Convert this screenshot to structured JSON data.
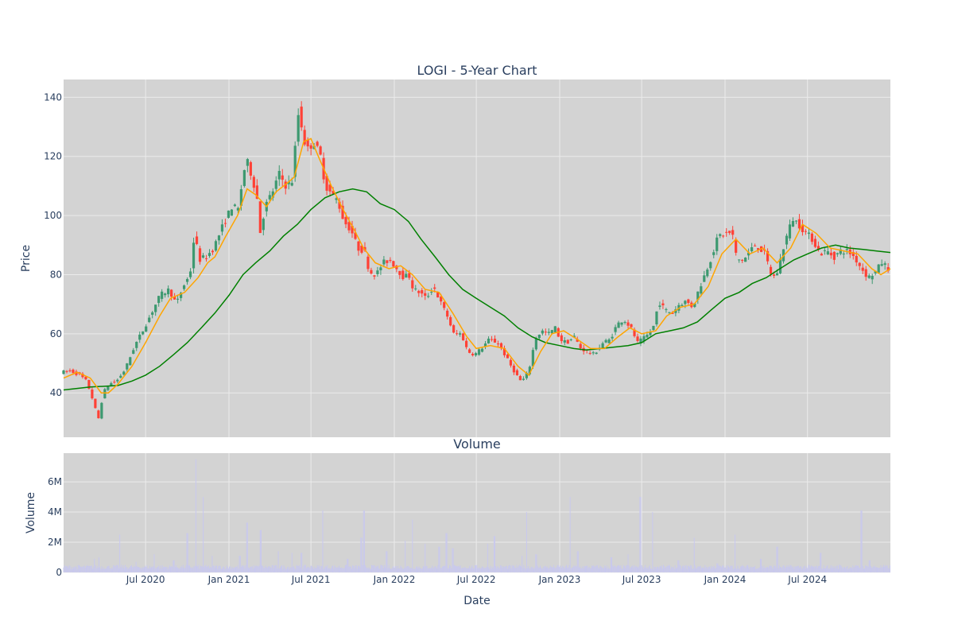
{
  "chart_data": {
    "type": "candlestick",
    "title": "LOGI - 5-Year Chart",
    "subplot_titles": [
      "Volume"
    ],
    "x_axis": {
      "title": "Date",
      "range": [
        "2020-01-02",
        "2024-12-31"
      ],
      "ticks": [
        {
          "date": "2020-07-01",
          "label": "Jul 2020"
        },
        {
          "date": "2021-01-01",
          "label": "Jan 2021"
        },
        {
          "date": "2021-07-01",
          "label": "Jul 2021"
        },
        {
          "date": "2022-01-01",
          "label": "Jan 2022"
        },
        {
          "date": "2022-07-01",
          "label": "Jul 2022"
        },
        {
          "date": "2023-01-01",
          "label": "Jan 2023"
        },
        {
          "date": "2023-07-01",
          "label": "Jul 2023"
        },
        {
          "date": "2024-01-01",
          "label": "Jan 2024"
        },
        {
          "date": "2024-07-01",
          "label": "Jul 2024"
        }
      ]
    },
    "price_axis": {
      "title": "Price",
      "range": [
        25,
        146
      ],
      "ticks": [
        40,
        60,
        80,
        100,
        120,
        140
      ]
    },
    "volume_axis": {
      "title": "Volume",
      "range": [
        0,
        7900000
      ],
      "ticks": [
        {
          "v": 0,
          "label": "0"
        },
        {
          "v": 2000000,
          "label": "2M"
        },
        {
          "v": 4000000,
          "label": "4M"
        },
        {
          "v": 6000000,
          "label": "6M"
        }
      ]
    },
    "grid": true,
    "colors": {
      "up": "#3D9970",
      "down": "#FF4136",
      "ma_short": "#FFA500",
      "ma_long": "#008000",
      "volume": "#c8c8ee",
      "plot_bg": "#d3d3d3",
      "grid": "#ebebeb"
    },
    "price_path": [
      [
        "2020-01-02",
        47
      ],
      [
        "2020-01-20",
        47.5
      ],
      [
        "2020-02-10",
        46
      ],
      [
        "2020-02-24",
        44
      ],
      [
        "2020-03-05",
        40
      ],
      [
        "2020-03-16",
        34
      ],
      [
        "2020-03-23",
        31
      ],
      [
        "2020-04-01",
        40
      ],
      [
        "2020-04-15",
        43
      ],
      [
        "2020-05-01",
        44
      ],
      [
        "2020-05-20",
        48
      ],
      [
        "2020-06-10",
        56
      ],
      [
        "2020-07-01",
        62
      ],
      [
        "2020-07-20",
        68
      ],
      [
        "2020-08-05",
        73
      ],
      [
        "2020-08-25",
        75
      ],
      [
        "2020-09-10",
        70
      ],
      [
        "2020-09-25",
        76
      ],
      [
        "2020-10-10",
        80
      ],
      [
        "2020-10-20",
        94
      ],
      [
        "2020-10-30",
        85
      ],
      [
        "2020-11-15",
        86
      ],
      [
        "2020-12-01",
        89
      ],
      [
        "2020-12-20",
        96
      ],
      [
        "2021-01-10",
        103
      ],
      [
        "2021-01-25",
        102
      ],
      [
        "2021-02-05",
        115
      ],
      [
        "2021-02-15",
        118
      ],
      [
        "2021-03-01",
        110
      ],
      [
        "2021-03-08",
        105
      ],
      [
        "2021-03-12",
        93
      ],
      [
        "2021-03-25",
        103
      ],
      [
        "2021-04-10",
        108
      ],
      [
        "2021-04-25",
        114
      ],
      [
        "2021-05-10",
        110
      ],
      [
        "2021-05-25",
        112
      ],
      [
        "2021-06-01",
        127
      ],
      [
        "2021-06-08",
        137
      ],
      [
        "2021-06-15",
        128
      ],
      [
        "2021-06-25",
        122
      ],
      [
        "2021-07-10",
        125
      ],
      [
        "2021-07-25",
        120
      ],
      [
        "2021-08-05",
        110
      ],
      [
        "2021-08-20",
        107
      ],
      [
        "2021-09-01",
        105
      ],
      [
        "2021-09-15",
        98
      ],
      [
        "2021-10-01",
        95
      ],
      [
        "2021-10-15",
        89
      ],
      [
        "2021-10-30",
        88
      ],
      [
        "2021-11-10",
        81
      ],
      [
        "2021-11-25",
        80
      ],
      [
        "2021-12-10",
        84
      ],
      [
        "2021-12-25",
        85
      ],
      [
        "2022-01-10",
        82
      ],
      [
        "2022-01-25",
        79
      ],
      [
        "2022-02-05",
        80
      ],
      [
        "2022-02-15",
        75
      ],
      [
        "2022-03-01",
        74
      ],
      [
        "2022-03-15",
        72
      ],
      [
        "2022-04-01",
        76
      ],
      [
        "2022-04-15",
        71
      ],
      [
        "2022-05-01",
        66
      ],
      [
        "2022-05-15",
        60
      ],
      [
        "2022-06-01",
        60
      ],
      [
        "2022-06-15",
        54
      ],
      [
        "2022-07-01",
        53
      ],
      [
        "2022-07-15",
        55
      ],
      [
        "2022-08-01",
        58
      ],
      [
        "2022-08-20",
        57
      ],
      [
        "2022-09-01",
        54
      ],
      [
        "2022-09-15",
        50
      ],
      [
        "2022-10-01",
        46
      ],
      [
        "2022-10-10",
        44
      ],
      [
        "2022-10-20",
        45
      ],
      [
        "2022-11-01",
        50
      ],
      [
        "2022-11-10",
        58
      ],
      [
        "2022-11-25",
        61
      ],
      [
        "2022-12-10",
        60
      ],
      [
        "2022-12-25",
        62
      ],
      [
        "2023-01-05",
        58
      ],
      [
        "2023-01-20",
        57
      ],
      [
        "2023-02-05",
        59
      ],
      [
        "2023-02-20",
        55
      ],
      [
        "2023-03-05",
        54
      ],
      [
        "2023-03-20",
        53
      ],
      [
        "2023-04-10",
        57
      ],
      [
        "2023-04-25",
        58
      ],
      [
        "2023-05-10",
        63
      ],
      [
        "2023-05-25",
        65
      ],
      [
        "2023-06-10",
        62
      ],
      [
        "2023-06-25",
        57
      ],
      [
        "2023-07-05",
        58
      ],
      [
        "2023-07-20",
        60
      ],
      [
        "2023-08-01",
        63
      ],
      [
        "2023-08-10",
        71
      ],
      [
        "2023-08-25",
        68
      ],
      [
        "2023-09-10",
        67
      ],
      [
        "2023-09-25",
        70
      ],
      [
        "2023-10-10",
        71
      ],
      [
        "2023-10-25",
        69
      ],
      [
        "2023-11-05",
        74
      ],
      [
        "2023-11-20",
        80
      ],
      [
        "2023-12-05",
        86
      ],
      [
        "2023-12-20",
        93
      ],
      [
        "2024-01-05",
        94
      ],
      [
        "2024-01-20",
        94
      ],
      [
        "2024-01-30",
        85
      ],
      [
        "2024-02-15",
        85
      ],
      [
        "2024-02-28",
        88
      ],
      [
        "2024-03-10",
        90
      ],
      [
        "2024-03-20",
        89
      ],
      [
        "2024-04-01",
        87
      ],
      [
        "2024-04-15",
        80
      ],
      [
        "2024-04-25",
        79
      ],
      [
        "2024-05-05",
        85
      ],
      [
        "2024-05-15",
        91
      ],
      [
        "2024-06-01",
        99
      ],
      [
        "2024-06-15",
        97
      ],
      [
        "2024-07-01",
        94
      ],
      [
        "2024-07-15",
        92
      ],
      [
        "2024-08-01",
        87
      ],
      [
        "2024-08-15",
        88
      ],
      [
        "2024-09-01",
        86
      ],
      [
        "2024-09-15",
        88
      ],
      [
        "2024-10-01",
        88
      ],
      [
        "2024-10-15",
        86
      ],
      [
        "2024-11-01",
        82
      ],
      [
        "2024-11-15",
        79
      ],
      [
        "2024-12-01",
        81
      ],
      [
        "2024-12-15",
        84
      ],
      [
        "2024-12-31",
        82
      ]
    ],
    "ma_short_path": [
      [
        "2020-01-02",
        45
      ],
      [
        "2020-02-01",
        47
      ],
      [
        "2020-03-01",
        45
      ],
      [
        "2020-03-25",
        40
      ],
      [
        "2020-04-10",
        40
      ],
      [
        "2020-05-01",
        43
      ],
      [
        "2020-06-01",
        49
      ],
      [
        "2020-07-01",
        57
      ],
      [
        "2020-08-01",
        66
      ],
      [
        "2020-08-25",
        72
      ],
      [
        "2020-09-25",
        74
      ],
      [
        "2020-10-25",
        79
      ],
      [
        "2020-11-15",
        84
      ],
      [
        "2020-12-01",
        86
      ],
      [
        "2020-12-25",
        93
      ],
      [
        "2021-01-20",
        100
      ],
      [
        "2021-02-10",
        109
      ],
      [
        "2021-03-01",
        107
      ],
      [
        "2021-03-25",
        103
      ],
      [
        "2021-04-15",
        108
      ],
      [
        "2021-05-10",
        111
      ],
      [
        "2021-05-25",
        113
      ],
      [
        "2021-06-15",
        125
      ],
      [
        "2021-07-01",
        126
      ],
      [
        "2021-07-20",
        119
      ],
      [
        "2021-08-15",
        110
      ],
      [
        "2021-09-10",
        102
      ],
      [
        "2021-10-05",
        95
      ],
      [
        "2021-10-25",
        89
      ],
      [
        "2021-11-20",
        84
      ],
      [
        "2021-12-20",
        82
      ],
      [
        "2022-01-15",
        83
      ],
      [
        "2022-02-10",
        80
      ],
      [
        "2022-03-10",
        75
      ],
      [
        "2022-04-10",
        74
      ],
      [
        "2022-05-10",
        67
      ],
      [
        "2022-06-10",
        59
      ],
      [
        "2022-07-01",
        55
      ],
      [
        "2022-08-01",
        56
      ],
      [
        "2022-09-01",
        55
      ],
      [
        "2022-10-01",
        49
      ],
      [
        "2022-10-25",
        46
      ],
      [
        "2022-11-20",
        54
      ],
      [
        "2022-12-15",
        60
      ],
      [
        "2023-01-10",
        61
      ],
      [
        "2023-02-10",
        58
      ],
      [
        "2023-03-10",
        55
      ],
      [
        "2023-04-10",
        55
      ],
      [
        "2023-05-10",
        59
      ],
      [
        "2023-06-05",
        62
      ],
      [
        "2023-07-01",
        60
      ],
      [
        "2023-08-01",
        61
      ],
      [
        "2023-08-25",
        66
      ],
      [
        "2023-09-25",
        69
      ],
      [
        "2023-10-25",
        70
      ],
      [
        "2023-11-25",
        76
      ],
      [
        "2023-12-25",
        87
      ],
      [
        "2024-01-25",
        92
      ],
      [
        "2024-02-25",
        87
      ],
      [
        "2024-03-25",
        89
      ],
      [
        "2024-04-25",
        84
      ],
      [
        "2024-05-25",
        89
      ],
      [
        "2024-06-20",
        97
      ],
      [
        "2024-07-20",
        94
      ],
      [
        "2024-08-20",
        89
      ],
      [
        "2024-09-20",
        88
      ],
      [
        "2024-10-20",
        87
      ],
      [
        "2024-11-20",
        82
      ],
      [
        "2024-12-10",
        80
      ],
      [
        "2024-12-31",
        82
      ]
    ],
    "ma_long_path": [
      [
        "2020-01-02",
        41
      ],
      [
        "2020-03-01",
        42
      ],
      [
        "2020-05-01",
        42.5
      ],
      [
        "2020-06-01",
        44
      ],
      [
        "2020-07-01",
        46
      ],
      [
        "2020-08-01",
        49
      ],
      [
        "2020-09-01",
        53
      ],
      [
        "2020-10-01",
        57
      ],
      [
        "2020-11-01",
        62
      ],
      [
        "2020-12-01",
        67
      ],
      [
        "2021-01-01",
        73
      ],
      [
        "2021-02-01",
        80
      ],
      [
        "2021-03-01",
        84
      ],
      [
        "2021-04-01",
        88
      ],
      [
        "2021-05-01",
        93
      ],
      [
        "2021-06-01",
        97
      ],
      [
        "2021-07-01",
        102
      ],
      [
        "2021-08-01",
        106
      ],
      [
        "2021-09-01",
        108
      ],
      [
        "2021-10-01",
        109
      ],
      [
        "2021-11-01",
        108
      ],
      [
        "2021-12-01",
        104
      ],
      [
        "2022-01-01",
        102
      ],
      [
        "2022-02-01",
        98
      ],
      [
        "2022-03-01",
        92
      ],
      [
        "2022-04-01",
        86
      ],
      [
        "2022-05-01",
        80
      ],
      [
        "2022-06-01",
        75
      ],
      [
        "2022-07-01",
        72
      ],
      [
        "2022-08-01",
        69
      ],
      [
        "2022-09-01",
        66
      ],
      [
        "2022-10-01",
        62
      ],
      [
        "2022-11-01",
        59
      ],
      [
        "2022-12-01",
        57
      ],
      [
        "2023-01-01",
        56
      ],
      [
        "2023-02-01",
        55
      ],
      [
        "2023-03-01",
        54.5
      ],
      [
        "2023-04-01",
        55
      ],
      [
        "2023-05-01",
        55.5
      ],
      [
        "2023-06-01",
        56
      ],
      [
        "2023-07-01",
        57
      ],
      [
        "2023-08-01",
        60
      ],
      [
        "2023-09-01",
        61
      ],
      [
        "2023-10-01",
        62
      ],
      [
        "2023-11-01",
        64
      ],
      [
        "2023-12-01",
        68
      ],
      [
        "2024-01-01",
        72
      ],
      [
        "2024-02-01",
        74
      ],
      [
        "2024-03-01",
        77
      ],
      [
        "2024-04-01",
        79
      ],
      [
        "2024-05-01",
        82
      ],
      [
        "2024-06-01",
        85
      ],
      [
        "2024-07-01",
        87
      ],
      [
        "2024-08-01",
        89
      ],
      [
        "2024-09-01",
        90
      ],
      [
        "2024-10-01",
        89
      ],
      [
        "2024-11-01",
        88.5
      ],
      [
        "2024-12-01",
        88
      ],
      [
        "2024-12-31",
        87.5
      ]
    ],
    "volume_baseline": 400000,
    "volume_spikes": [
      [
        "2020-03-10",
        900000
      ],
      [
        "2020-03-20",
        1000000
      ],
      [
        "2020-05-05",
        2500000
      ],
      [
        "2020-06-10",
        700000
      ],
      [
        "2020-07-20",
        1200000
      ],
      [
        "2020-09-01",
        800000
      ],
      [
        "2020-10-01",
        2600000
      ],
      [
        "2020-10-20",
        7500000
      ],
      [
        "2020-11-05",
        5000000
      ],
      [
        "2020-11-25",
        1100000
      ],
      [
        "2021-01-25",
        1100000
      ],
      [
        "2021-02-10",
        3300000
      ],
      [
        "2021-03-12",
        2800000
      ],
      [
        "2021-04-20",
        1400000
      ],
      [
        "2021-05-20",
        1300000
      ],
      [
        "2021-06-10",
        1300000
      ],
      [
        "2021-07-27",
        4100000
      ],
      [
        "2021-09-20",
        900000
      ],
      [
        "2021-10-20",
        2300000
      ],
      [
        "2021-10-26",
        4100000
      ],
      [
        "2021-12-15",
        1400000
      ],
      [
        "2022-01-25",
        2100000
      ],
      [
        "2022-02-10",
        3500000
      ],
      [
        "2022-03-10",
        1900000
      ],
      [
        "2022-04-10",
        1700000
      ],
      [
        "2022-04-26",
        2600000
      ],
      [
        "2022-05-10",
        1600000
      ],
      [
        "2022-07-26",
        1900000
      ],
      [
        "2022-08-10",
        2400000
      ],
      [
        "2022-10-10",
        1100000
      ],
      [
        "2022-10-20",
        4000000
      ],
      [
        "2022-11-10",
        1200000
      ],
      [
        "2023-01-24",
        5000000
      ],
      [
        "2023-02-10",
        1400000
      ],
      [
        "2023-04-25",
        1000000
      ],
      [
        "2023-06-01",
        1200000
      ],
      [
        "2023-06-28",
        5000000
      ],
      [
        "2023-07-25",
        4000000
      ],
      [
        "2023-09-20",
        800000
      ],
      [
        "2023-10-25",
        2300000
      ],
      [
        "2023-12-15",
        600000
      ],
      [
        "2024-01-23",
        2500000
      ],
      [
        "2024-03-20",
        900000
      ],
      [
        "2024-04-25",
        1700000
      ],
      [
        "2024-07-30",
        1300000
      ],
      [
        "2024-09-10",
        500000
      ],
      [
        "2024-10-28",
        4100000
      ],
      [
        "2024-11-15",
        800000
      ]
    ]
  }
}
